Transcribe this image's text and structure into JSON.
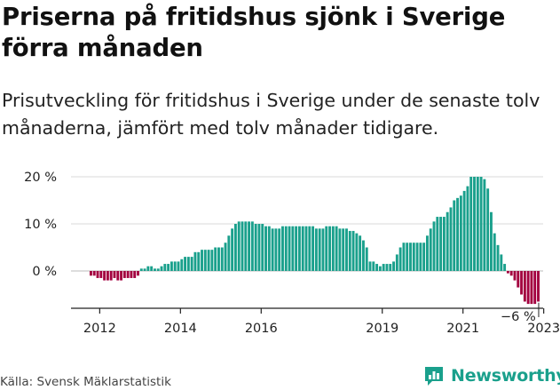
{
  "header": {
    "title": "Priserna på fritidshus sjönk i Sverige förra månaden",
    "subtitle": "Prisutveckling för fritidshus i Sverige under de senaste tolv månaderna, jämfört med tolv månader tidigare."
  },
  "footer": {
    "source": "Källa: Svensk Mäklarstatistik",
    "brand": "Newsworthy",
    "brand_icon": "newsworthy-logo-icon"
  },
  "colors": {
    "positive": "#1aa08c",
    "negative": "#a3003f",
    "axis": "#222222",
    "grid": "#d9d9d9"
  },
  "chart_data": {
    "type": "bar",
    "title": "",
    "xlabel": "",
    "ylabel": "",
    "y_unit": "%",
    "ylim": [
      -8,
      20
    ],
    "y_ticks": [
      {
        "value": 0,
        "label": "0 %"
      },
      {
        "value": 10,
        "label": "10 %"
      },
      {
        "value": 20,
        "label": "20 %"
      }
    ],
    "x_ticks": [
      "2012",
      "2014",
      "2016",
      "2019",
      "2021",
      "2023"
    ],
    "annotation": {
      "text": "−6 %",
      "value": -6
    },
    "grid": true,
    "legend": "none",
    "series": [
      {
        "start": "2011-10",
        "end": "2023-09",
        "values": [
          -1,
          -1,
          -1.5,
          -1.5,
          -2,
          -2,
          -2,
          -1.5,
          -2,
          -2,
          -1.5,
          -1.5,
          -1.5,
          -1.5,
          -1,
          0.5,
          0.5,
          1,
          1,
          0.5,
          0.5,
          1,
          1.5,
          1.5,
          2,
          2,
          2,
          2.5,
          3,
          3,
          3,
          4,
          4,
          4.5,
          4.5,
          4.5,
          4.5,
          5,
          5,
          5,
          6,
          7.5,
          9,
          10,
          10.5,
          10.5,
          10.5,
          10.5,
          10.5,
          10,
          10,
          10,
          9.5,
          9.5,
          9,
          9,
          9,
          9.5,
          9.5,
          9.5,
          9.5,
          9.5,
          9.5,
          9.5,
          9.5,
          9.5,
          9.5,
          9,
          9,
          9,
          9.5,
          9.5,
          9.5,
          9.5,
          9,
          9,
          9,
          8.5,
          8.5,
          8,
          7.5,
          6.5,
          5,
          2,
          2,
          1.5,
          1,
          1.5,
          1.5,
          1.5,
          2,
          3.5,
          5,
          6,
          6,
          6,
          6,
          6,
          6,
          6,
          7.5,
          9,
          10.5,
          11.5,
          11.5,
          11.5,
          12.5,
          13.5,
          15,
          15.5,
          16,
          17,
          18,
          20,
          20,
          20,
          20,
          19.5,
          17.5,
          12.5,
          8,
          5.5,
          3.5,
          1.5,
          -0.5,
          -1,
          -2,
          -3.5,
          -5,
          -6.5,
          -7,
          -7,
          -7,
          -6.5
        ]
      }
    ]
  }
}
